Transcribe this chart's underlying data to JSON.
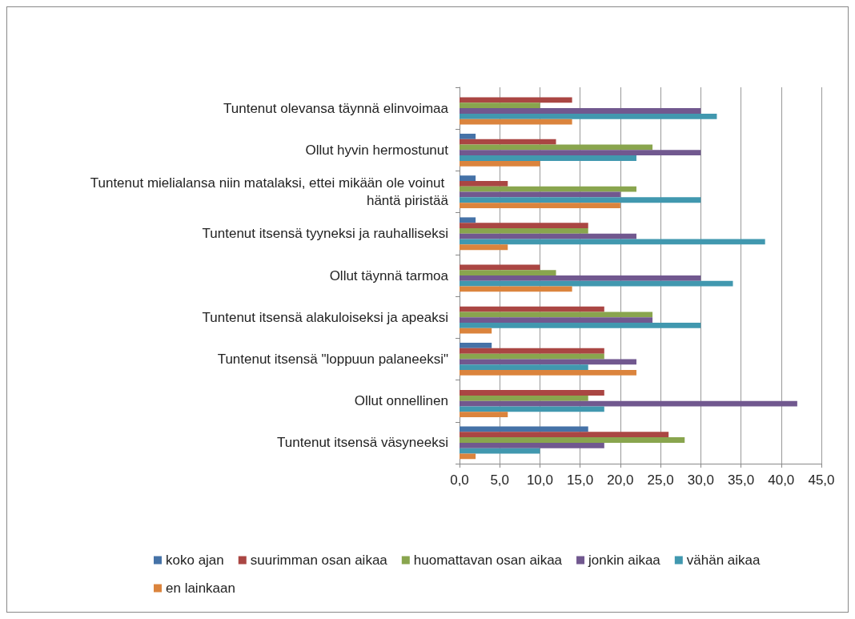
{
  "chart_data": {
    "type": "bar",
    "orientation": "horizontal",
    "categories": [
      "Tuntenut olevansa täynnä elinvoimaa",
      "Ollut hyvin hermostunut",
      "Tuntenut mielialansa niin matalaksi, ettei mikään ole voinut häntä piristää",
      "Tuntenut itsensä tyyneksi ja rauhalliseksi",
      "Ollut täynnä tarmoa",
      "Tuntenut itsensä alakuloiseksi ja apeaksi",
      "Tuntenut itsensä \"loppuun palaneeksi\"",
      "Ollut onnellinen",
      "Tuntenut itsensä väsyneeksi"
    ],
    "series": [
      {
        "name": "koko ajan",
        "color": "#4572a7",
        "values": [
          0,
          2,
          2,
          2,
          0,
          0,
          4,
          0,
          16
        ]
      },
      {
        "name": "suurimman osan aikaa",
        "color": "#aa4643",
        "values": [
          14,
          12,
          6,
          16,
          10,
          18,
          18,
          18,
          26
        ]
      },
      {
        "name": "huomattavan osan aikaa",
        "color": "#89a54e",
        "values": [
          10,
          24,
          22,
          16,
          12,
          24,
          18,
          16,
          28
        ]
      },
      {
        "name": "jonkin aikaa",
        "color": "#71588f",
        "values": [
          30,
          30,
          20,
          22,
          30,
          24,
          22,
          42,
          18
        ]
      },
      {
        "name": "vähän aikaa",
        "color": "#4198af",
        "values": [
          32,
          22,
          30,
          38,
          34,
          30,
          16,
          18,
          10
        ]
      },
      {
        "name": "en lainkaan",
        "color": "#db843d",
        "values": [
          14,
          10,
          20,
          6,
          14,
          4,
          22,
          6,
          2
        ]
      }
    ],
    "xlim": [
      0,
      45
    ],
    "xticks": [
      {
        "value": 0,
        "label": "0,0"
      },
      {
        "value": 5,
        "label": "5,0"
      },
      {
        "value": 10,
        "label": "10,0"
      },
      {
        "value": 15,
        "label": "15,0"
      },
      {
        "value": 20,
        "label": "20,0"
      },
      {
        "value": 25,
        "label": "25,0"
      },
      {
        "value": 30,
        "label": "30,0"
      },
      {
        "value": 35,
        "label": "35,0"
      },
      {
        "value": 40,
        "label": "40,0"
      },
      {
        "value": 45,
        "label": "45,0"
      }
    ],
    "grid": "x",
    "legend": "bottom"
  }
}
